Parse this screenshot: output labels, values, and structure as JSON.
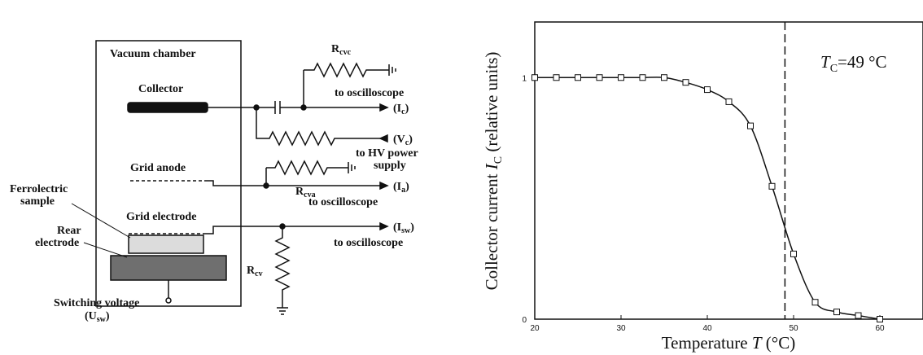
{
  "schematic": {
    "chamber_label": "Vacuum chamber",
    "collector_label": "Collector",
    "grid_anode_label": "Grid anode",
    "ferro_line1": "Ferrolectric",
    "ferro_line2": "sample",
    "grid_electrode_label": "Grid electrode",
    "rear_line1": "Rear",
    "rear_line2": "electrode",
    "switch_line1": "Switching voltage",
    "switch_U": "(U",
    "switch_sub": "sw",
    "switch_close": ")",
    "rcvc_main": "R",
    "rcvc_sub": "cvc",
    "rcva_main": "R",
    "rcva_sub": "cva",
    "rcv_main": "R",
    "rcv_sub": "cv",
    "to_osc_1": "to oscilloscope",
    "ic_open": "(I",
    "ic_sub": "c",
    "ic_close": ")",
    "vc_open": "(V",
    "vc_sub": "c",
    "vc_close": ")",
    "hv_line1": "to HV power",
    "hv_line2": "supply",
    "ia_open": "(I",
    "ia_sub": "a",
    "ia_close": ")",
    "to_osc_2": "to oscilloscope",
    "isw_open": "(I",
    "isw_sub": "sw",
    "isw_close": ")",
    "to_osc_3": "to oscilloscope"
  },
  "chart_data": {
    "type": "line",
    "title": "",
    "annotation": {
      "T": "T",
      "sub": "C",
      "value": "=49 °C"
    },
    "xlabel_prefix": "Temperature ",
    "xlabel_italic": "T",
    "xlabel_suffix": " (°C)",
    "ylabel_prefix": "Collector current ",
    "ylabel_italic": "I",
    "ylabel_sub": "C",
    "ylabel_suffix": " (relative units)",
    "xlim": [
      20,
      65
    ],
    "ylim": [
      0,
      1.23
    ],
    "xticks": [
      20,
      30,
      40,
      50,
      60
    ],
    "yticks": [
      0,
      1
    ],
    "vline_x": 49,
    "marker_style": "open-square",
    "series": [
      {
        "x": [
          20,
          22.5,
          25,
          27.5,
          30,
          32.5,
          35,
          37.5,
          40,
          42.5,
          45,
          47.5,
          50,
          52.5,
          55,
          57.5,
          60
        ],
        "y": [
          1.0,
          1.0,
          1.0,
          1.0,
          1.0,
          1.0,
          1.0,
          0.98,
          0.95,
          0.9,
          0.8,
          0.55,
          0.27,
          0.07,
          0.03,
          0.015,
          0.0
        ]
      }
    ]
  }
}
